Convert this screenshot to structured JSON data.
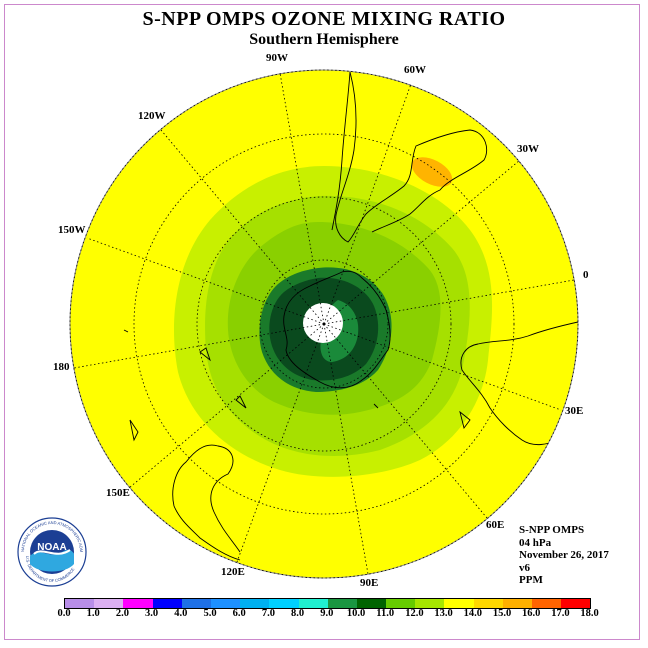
{
  "title": "S-NPP OMPS OZONE MIXING RATIO",
  "subtitle": "Southern Hemisphere",
  "longitude_labels": {
    "w90": "90W",
    "w60": "60W",
    "w30": "30W",
    "e0": "0",
    "e30": "30E",
    "e60": "60E",
    "e90": "90E",
    "e120": "120E",
    "e150": "150E",
    "d180": "180",
    "w150": "150W",
    "w120": "120W"
  },
  "info": {
    "instrument": "S-NPP OMPS",
    "level": "04 hPa",
    "date": "November 26, 2017",
    "version": "v6",
    "units": "PPM"
  },
  "logo": {
    "text": "NOAA",
    "ring_text": "NATIONAL OCEANIC AND ATMOSPHERIC ADMINISTRATION",
    "bottom_text": "U.S. DEPARTMENT OF COMMERCE"
  },
  "colorbar": {
    "tick_labels": [
      "0.0",
      "1.0",
      "2.0",
      "3.0",
      "4.0",
      "5.0",
      "6.0",
      "7.0",
      "8.0",
      "9.0",
      "10.0",
      "11.0",
      "12.0",
      "13.0",
      "14.0",
      "15.0",
      "16.0",
      "17.0",
      "18.0"
    ],
    "colors": [
      "#b88ee8",
      "#dcb0f2",
      "#ff00ff",
      "#0000ff",
      "#1e70e6",
      "#1e90ff",
      "#00b0f0",
      "#00d0ff",
      "#20f0d0",
      "#1a9641",
      "#006400",
      "#66cc00",
      "#a6e600",
      "#ffff00",
      "#ffd700",
      "#ffb000",
      "#ff6400",
      "#ff0000",
      "#8b5a2b"
    ]
  },
  "map_colors": {
    "background_level": "#ffff00",
    "level_12": "#c8f000",
    "level_11": "#a0e000",
    "level_10": "#8ad000",
    "level_9": "#1a7a1a",
    "level_8": "#0a5a2a",
    "missing": "#ffffff",
    "local_max": "#ffb400"
  }
}
